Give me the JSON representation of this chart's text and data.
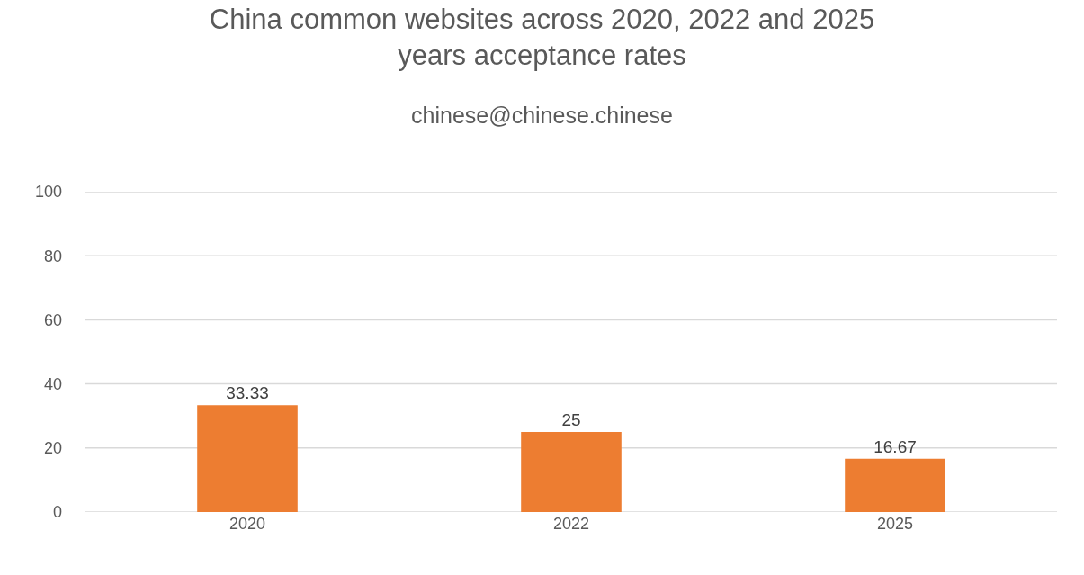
{
  "chart_data": {
    "type": "bar",
    "title": "China common websites across 2020, 2022 and 2025 years acceptance rates",
    "subtitle": "chinese@chinese.chinese",
    "categories": [
      "2020",
      "2022",
      "2025"
    ],
    "values": [
      33.33,
      25,
      16.67
    ],
    "color": "#ed7d31",
    "ylim": [
      0,
      100
    ],
    "yticks": [
      0,
      20,
      40,
      60,
      80,
      100
    ],
    "grid": "y",
    "data_labels": true
  }
}
